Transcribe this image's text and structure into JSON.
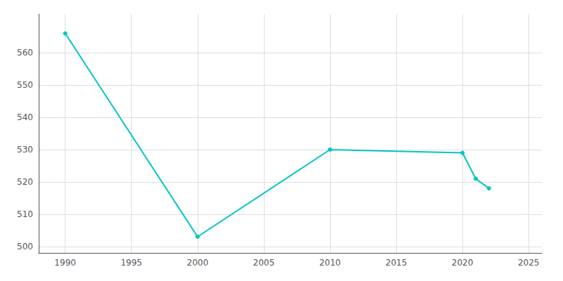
{
  "chart_data": {
    "type": "line",
    "x": [
      1990,
      2000,
      2010,
      2020,
      2021,
      2022
    ],
    "values": [
      566,
      503,
      530,
      529,
      521,
      518
    ],
    "color": "#00C5C5",
    "marker": "circle",
    "xlim": [
      1988,
      2026
    ],
    "ylim": [
      498,
      572
    ],
    "xticks": [
      1990,
      1995,
      2000,
      2005,
      2010,
      2015,
      2020,
      2025
    ],
    "yticks": [
      500,
      510,
      520,
      530,
      540,
      550,
      560
    ],
    "grid": true
  }
}
